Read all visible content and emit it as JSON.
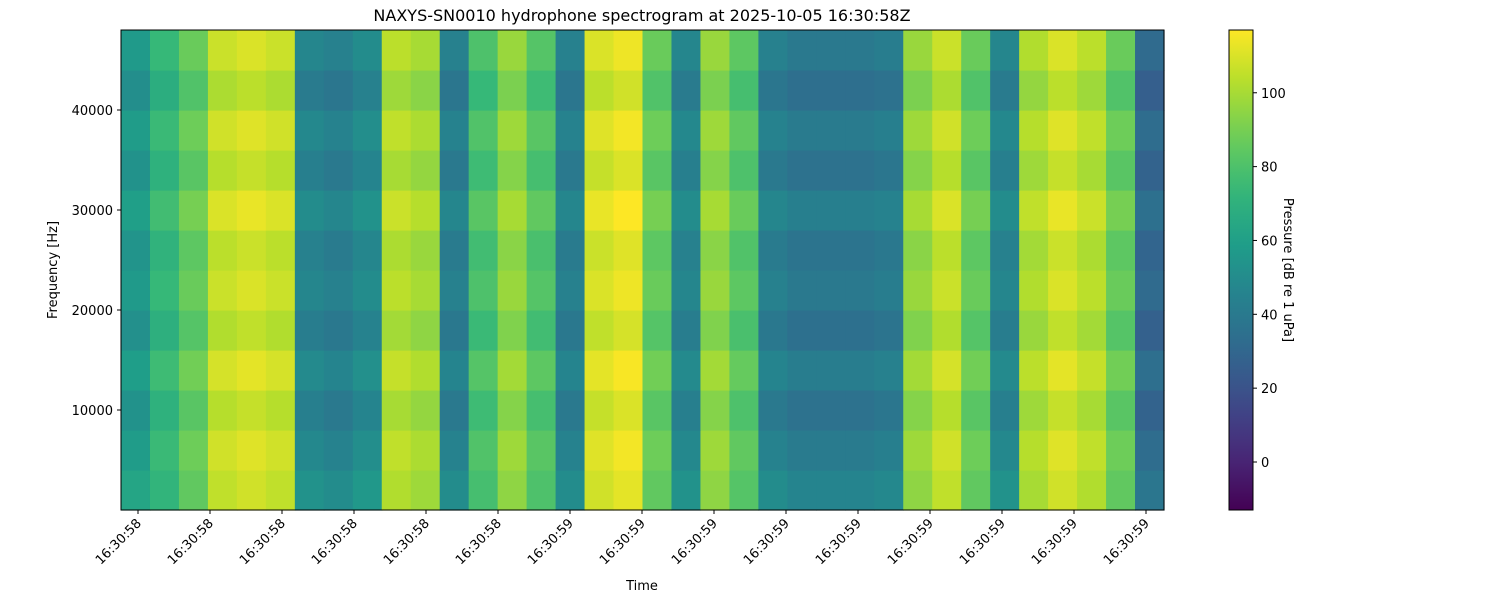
{
  "chart_data": {
    "type": "spectrogram",
    "title": "NAXYS-SN0010 hydrophone spectrogram at 2025-10-05 16:30:58Z",
    "x_label": "Time",
    "y_label": "Frequency [Hz]",
    "colorbar_label": "Pressure [dB re 1 uPa]",
    "colormap": "viridis",
    "ylim": [
      0,
      48000
    ],
    "yticks": [
      10000,
      20000,
      30000,
      40000
    ],
    "xticks": [
      "16:30:58",
      "16:30:58",
      "16:30:58",
      "16:30:58",
      "16:30:58",
      "16:30:58",
      "16:30:59",
      "16:30:59",
      "16:30:59",
      "16:30:59",
      "16:30:59",
      "16:30:59",
      "16:30:59",
      "16:30:59",
      "16:30:59"
    ],
    "clim": [
      -13,
      117
    ],
    "cticks": [
      0,
      20,
      40,
      60,
      80,
      100
    ],
    "y_bins": [
      0,
      4000,
      8000,
      12000,
      16000,
      20000,
      24000,
      28000,
      32000,
      36000,
      40000,
      44000,
      48000
    ],
    "z": [
      [
        63,
        72,
        85,
        105,
        108,
        105,
        53,
        50,
        56,
        102,
        98,
        50,
        78,
        95,
        80,
        50,
        108,
        112,
        85,
        53,
        95,
        82,
        50,
        46,
        46,
        46,
        48,
        95,
        105,
        85,
        53,
        100,
        108,
        102,
        85,
        38
      ],
      [
        58,
        75,
        88,
        108,
        111,
        108,
        48,
        45,
        51,
        105,
        101,
        45,
        81,
        98,
        83,
        45,
        111,
        115,
        88,
        48,
        98,
        85,
        45,
        41,
        41,
        41,
        43,
        98,
        108,
        88,
        48,
        103,
        111,
        105,
        88,
        33
      ],
      [
        53,
        70,
        83,
        103,
        106,
        103,
        43,
        40,
        46,
        100,
        96,
        40,
        76,
        93,
        78,
        40,
        106,
        110,
        83,
        43,
        93,
        80,
        40,
        36,
        36,
        36,
        38,
        93,
        103,
        83,
        43,
        98,
        106,
        100,
        83,
        28
      ],
      [
        59,
        76,
        89,
        109,
        112,
        109,
        49,
        46,
        52,
        106,
        102,
        46,
        82,
        99,
        84,
        46,
        112,
        116,
        89,
        49,
        99,
        86,
        46,
        42,
        42,
        42,
        44,
        99,
        109,
        89,
        49,
        104,
        112,
        106,
        89,
        34
      ],
      [
        52,
        69,
        82,
        102,
        105,
        102,
        42,
        39,
        45,
        99,
        95,
        39,
        75,
        92,
        77,
        39,
        105,
        109,
        82,
        42,
        92,
        79,
        39,
        35,
        35,
        35,
        37,
        92,
        102,
        82,
        42,
        97,
        105,
        99,
        82,
        27
      ],
      [
        57,
        74,
        87,
        107,
        110,
        107,
        47,
        44,
        50,
        104,
        100,
        44,
        80,
        97,
        82,
        44,
        110,
        114,
        87,
        47,
        97,
        84,
        44,
        40,
        40,
        40,
        42,
        97,
        107,
        87,
        47,
        102,
        110,
        104,
        87,
        32
      ],
      [
        54,
        71,
        84,
        104,
        107,
        104,
        44,
        41,
        47,
        101,
        97,
        41,
        77,
        94,
        79,
        41,
        107,
        111,
        84,
        44,
        94,
        81,
        41,
        37,
        37,
        37,
        39,
        94,
        104,
        84,
        44,
        99,
        107,
        101,
        84,
        29
      ],
      [
        60,
        77,
        90,
        110,
        113,
        110,
        50,
        47,
        53,
        107,
        103,
        47,
        83,
        100,
        85,
        47,
        113,
        117,
        90,
        50,
        100,
        87,
        47,
        43,
        43,
        43,
        45,
        100,
        110,
        90,
        50,
        105,
        113,
        107,
        90,
        35
      ],
      [
        53,
        70,
        83,
        103,
        106,
        103,
        43,
        40,
        46,
        100,
        96,
        40,
        76,
        93,
        78,
        40,
        106,
        110,
        83,
        43,
        93,
        80,
        40,
        36,
        36,
        36,
        38,
        93,
        103,
        83,
        43,
        98,
        106,
        100,
        83,
        28
      ],
      [
        58,
        75,
        88,
        108,
        111,
        108,
        48,
        45,
        51,
        105,
        101,
        45,
        81,
        98,
        83,
        45,
        111,
        115,
        88,
        48,
        98,
        85,
        45,
        41,
        41,
        41,
        43,
        98,
        108,
        88,
        48,
        103,
        111,
        105,
        88,
        33
      ],
      [
        51,
        68,
        81,
        101,
        104,
        101,
        41,
        38,
        44,
        98,
        94,
        38,
        74,
        91,
        76,
        38,
        104,
        108,
        81,
        41,
        91,
        78,
        38,
        34,
        34,
        34,
        36,
        91,
        101,
        81,
        41,
        96,
        104,
        98,
        81,
        26
      ],
      [
        57,
        74,
        87,
        107,
        110,
        107,
        47,
        44,
        50,
        104,
        100,
        44,
        80,
        97,
        82,
        44,
        110,
        114,
        87,
        47,
        97,
        84,
        44,
        40,
        40,
        40,
        42,
        97,
        107,
        87,
        47,
        102,
        110,
        104,
        87,
        32
      ]
    ]
  }
}
